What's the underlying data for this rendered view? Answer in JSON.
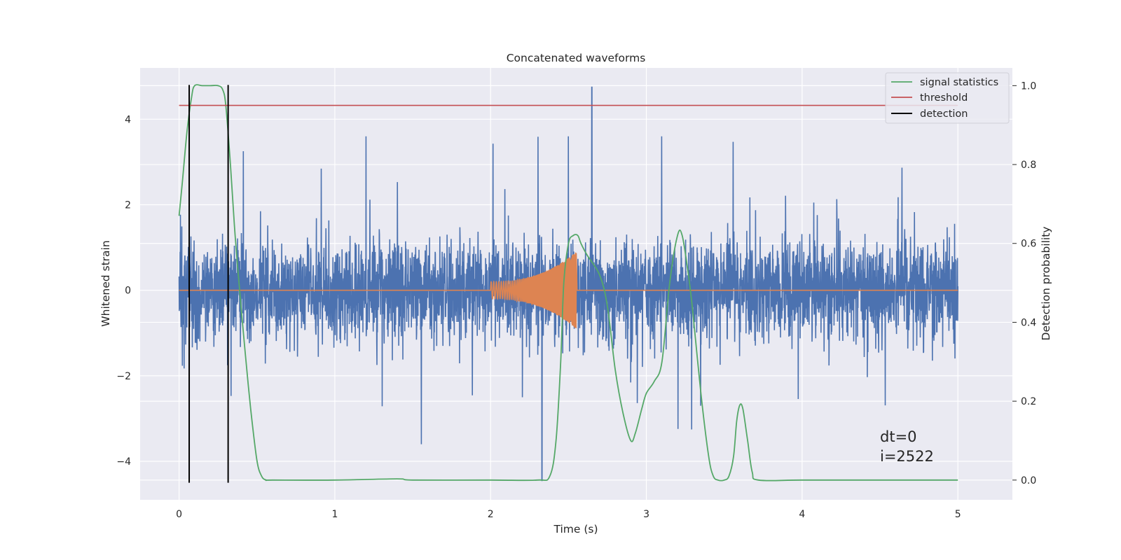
{
  "chart_data": {
    "type": "line",
    "title": "Concatenated waveforms",
    "xlabel": "Time (s)",
    "ylabel_left": "Whitened strain",
    "ylabel_right": "Detection probability",
    "xlim": [
      -0.25,
      5.35
    ],
    "ylim_left": [
      -4.9,
      5.2
    ],
    "ylim_right": [
      -0.05,
      1.045
    ],
    "xticks": [
      0,
      1,
      2,
      3,
      4,
      5
    ],
    "yticks_left": [
      -4,
      -2,
      0,
      2,
      4
    ],
    "yticks_right": [
      0.0,
      0.2,
      0.4,
      0.6,
      0.8,
      1.0
    ],
    "grid": true,
    "legend_position": "top-right",
    "colors": {
      "strain": "#4c72b0",
      "injection": "#dd8452",
      "signal_statistics": "#55a868",
      "threshold": "#c44e52",
      "detection": "#000000",
      "background": "#eaeaf2",
      "grid": "#ffffff"
    },
    "series": [
      {
        "name": "signal statistics",
        "axis": "right",
        "x": [
          0.0,
          0.02,
          0.05,
          0.08,
          0.1,
          0.15,
          0.2,
          0.25,
          0.28,
          0.3,
          0.33,
          0.36,
          0.4,
          0.43,
          0.46,
          0.5,
          0.53,
          0.56,
          0.6,
          1.0,
          1.4,
          1.5,
          2.0,
          2.3,
          2.38,
          2.42,
          2.45,
          2.47,
          2.5,
          2.53,
          2.56,
          2.58,
          2.62,
          2.7,
          2.75,
          2.8,
          2.85,
          2.9,
          2.93,
          2.97,
          3.0,
          3.05,
          3.1,
          3.15,
          3.2,
          3.23,
          3.27,
          3.3,
          3.35,
          3.4,
          3.43,
          3.46,
          3.5,
          3.53,
          3.56,
          3.58,
          3.6,
          3.62,
          3.65,
          3.68,
          3.72,
          4.0,
          4.5,
          5.0
        ],
        "y": [
          0.67,
          0.75,
          0.88,
          0.97,
          1.0,
          1.0,
          1.0,
          1.0,
          0.99,
          0.95,
          0.8,
          0.62,
          0.43,
          0.3,
          0.18,
          0.05,
          0.01,
          0.0,
          0.0,
          0.0,
          0.003,
          0.0,
          0.0,
          0.0,
          0.01,
          0.1,
          0.3,
          0.5,
          0.6,
          0.62,
          0.62,
          0.6,
          0.57,
          0.52,
          0.44,
          0.28,
          0.17,
          0.1,
          0.12,
          0.18,
          0.22,
          0.25,
          0.3,
          0.5,
          0.62,
          0.62,
          0.52,
          0.42,
          0.22,
          0.06,
          0.01,
          0.0,
          0.0,
          0.01,
          0.06,
          0.15,
          0.19,
          0.18,
          0.1,
          0.02,
          0.0,
          0.0,
          0.0,
          0.0
        ]
      },
      {
        "name": "threshold",
        "axis": "right",
        "x": [
          0.0,
          5.0
        ],
        "y": [
          0.95,
          0.95
        ]
      },
      {
        "name": "detection",
        "axis": "left",
        "x": [
          0.065,
          0.315
        ],
        "y_range": [
          -4.5,
          4.8
        ]
      },
      {
        "name": "",
        "role": "whitened strain",
        "axis": "left",
        "x_range": [
          0.0,
          5.0
        ],
        "sigma": 0.55,
        "peak_min": -4.45,
        "peak_max": 4.75,
        "peak_max_x": 2.65,
        "peak_min_x": 2.33
      },
      {
        "name": "",
        "role": "injected waveform",
        "axis": "left",
        "x_range": [
          2.0,
          2.55
        ],
        "amplitude_start": 0.2,
        "amplitude_peak": 0.9,
        "zero_elsewhere": true
      }
    ],
    "legend": [
      "signal statistics",
      "threshold",
      "detection"
    ],
    "annotations": [
      "dt=0",
      "i=2522"
    ]
  }
}
